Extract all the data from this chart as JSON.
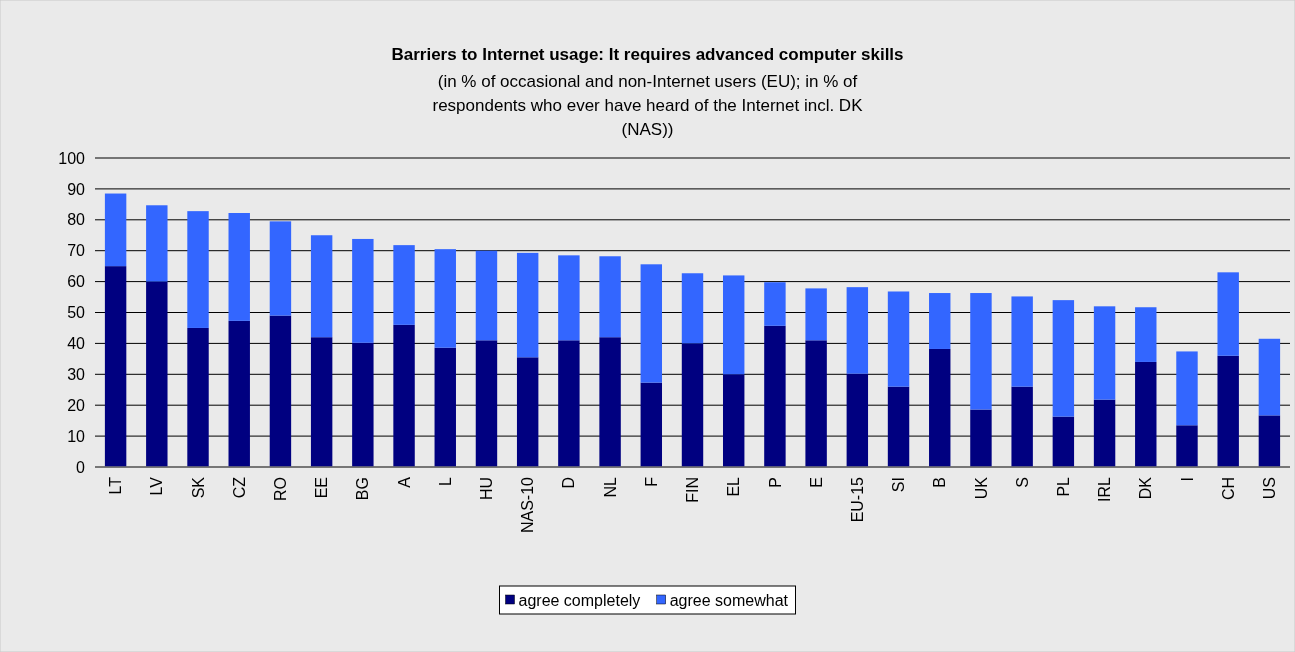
{
  "chart_data": {
    "type": "bar",
    "title": "Barriers to Internet usage: It requires advanced computer skills",
    "subtitle": "(in % of occasional and non-Internet users (EU); in % of respondents who ever have heard of the Internet incl. DK (NAS))",
    "categories": [
      "LT",
      "LV",
      "SK",
      "CZ",
      "RO",
      "EE",
      "BG",
      "A",
      "L",
      "HU",
      "NAS-10",
      "D",
      "NL",
      "F",
      "FIN",
      "EL",
      "P",
      "E",
      "EU-15",
      "SI",
      "B",
      "UK",
      "S",
      "PL",
      "IRL",
      "DK",
      "I",
      "CH",
      "US"
    ],
    "stacked": true,
    "series": [
      {
        "name": "agree completely",
        "color": "#000080",
        "values": [
          65,
          60,
          45,
          47.3,
          49,
          42,
          40.2,
          46,
          38.6,
          41,
          35.5,
          41,
          42,
          27.3,
          40,
          30,
          45.7,
          41,
          30.2,
          26,
          38.2,
          18.6,
          26,
          16.3,
          21.8,
          34,
          13.5,
          36,
          16.7
        ]
      },
      {
        "name": "agree somewhat",
        "color": "#3366ff",
        "values": [
          23.5,
          24.7,
          37.8,
          34.9,
          30.5,
          33,
          33.6,
          25.8,
          31.9,
          29,
          33.8,
          27.5,
          26.2,
          38.3,
          22.7,
          32,
          14.1,
          16.8,
          28,
          30.8,
          18.1,
          37.7,
          29.2,
          37.7,
          30.2,
          17.7,
          23.9,
          27,
          24.8
        ]
      }
    ],
    "ylim": [
      0,
      100
    ],
    "yticks": [
      0,
      10,
      20,
      30,
      40,
      50,
      60,
      70,
      80,
      90,
      100
    ],
    "grid": "y",
    "legend": "bottom"
  }
}
